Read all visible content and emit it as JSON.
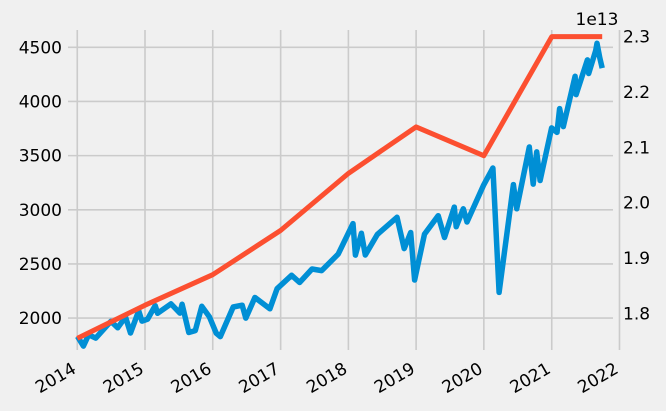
{
  "chart_data": {
    "type": "line",
    "style": "fivethirtyeight",
    "grid": true,
    "xlim": [
      "2013-11-12",
      "2021-11-27"
    ],
    "x_ticks": [
      "2014",
      "2015",
      "2016",
      "2017",
      "2018",
      "2019",
      "2020",
      "2021",
      "2022"
    ],
    "left_axis": {
      "ylim": [
        1705,
        4660
      ],
      "ticks": [
        2000,
        2500,
        3000,
        3500,
        4000,
        4500
      ],
      "tick_labels": [
        "2000",
        "2500",
        "3000",
        "3500",
        "4000",
        "4500"
      ]
    },
    "right_axis": {
      "offset_label": "1e13",
      "ylim": [
        1.734,
        2.312
      ],
      "ticks": [
        1.8,
        1.9,
        2.0,
        2.1,
        2.2,
        2.3
      ],
      "tick_labels": [
        "1.8",
        "1.9",
        "2.0",
        "2.1",
        "2.2",
        "2.3"
      ]
    },
    "series": [
      {
        "axis": "left",
        "color": "#008fd5",
        "values": [
          [
            "2014-01-02",
            1831
          ],
          [
            "2014-02-03",
            1741
          ],
          [
            "2014-03-03",
            1845
          ],
          [
            "2014-04-11",
            1815
          ],
          [
            "2014-05-15",
            1880
          ],
          [
            "2014-07-01",
            1970
          ],
          [
            "2014-08-07",
            1910
          ],
          [
            "2014-09-18",
            2010
          ],
          [
            "2014-10-15",
            1862
          ],
          [
            "2014-11-28",
            2067
          ],
          [
            "2014-12-16",
            1972
          ],
          [
            "2015-01-15",
            1990
          ],
          [
            "2015-02-25",
            2115
          ],
          [
            "2015-03-10",
            2044
          ],
          [
            "2015-05-21",
            2131
          ],
          [
            "2015-07-08",
            2046
          ],
          [
            "2015-07-20",
            2128
          ],
          [
            "2015-08-25",
            1867
          ],
          [
            "2015-09-29",
            1884
          ],
          [
            "2015-11-03",
            2109
          ],
          [
            "2015-12-14",
            2012
          ],
          [
            "2016-01-20",
            1859
          ],
          [
            "2016-02-11",
            1829
          ],
          [
            "2016-04-20",
            2102
          ],
          [
            "2016-06-08",
            2119
          ],
          [
            "2016-06-27",
            2000
          ],
          [
            "2016-08-15",
            2190
          ],
          [
            "2016-11-04",
            2085
          ],
          [
            "2016-12-13",
            2271
          ],
          [
            "2017-03-01",
            2395
          ],
          [
            "2017-04-13",
            2328
          ],
          [
            "2017-06-19",
            2453
          ],
          [
            "2017-08-10",
            2438
          ],
          [
            "2017-11-07",
            2591
          ],
          [
            "2018-01-26",
            2872
          ],
          [
            "2018-02-08",
            2581
          ],
          [
            "2018-03-12",
            2783
          ],
          [
            "2018-04-02",
            2582
          ],
          [
            "2018-06-06",
            2772
          ],
          [
            "2018-09-20",
            2930
          ],
          [
            "2018-10-29",
            2641
          ],
          [
            "2018-12-03",
            2790
          ],
          [
            "2018-12-24",
            2351
          ],
          [
            "2019-02-15",
            2775
          ],
          [
            "2019-04-30",
            2945
          ],
          [
            "2019-06-03",
            2744
          ],
          [
            "2019-07-26",
            3025
          ],
          [
            "2019-08-05",
            2844
          ],
          [
            "2019-09-12",
            3009
          ],
          [
            "2019-10-02",
            2887
          ],
          [
            "2019-12-31",
            3230
          ],
          [
            "2020-02-19",
            3386
          ],
          [
            "2020-03-23",
            2237
          ],
          [
            "2020-06-08",
            3232
          ],
          [
            "2020-06-26",
            3009
          ],
          [
            "2020-09-02",
            3580
          ],
          [
            "2020-09-23",
            3237
          ],
          [
            "2020-10-12",
            3534
          ],
          [
            "2020-10-30",
            3270
          ],
          [
            "2020-12-31",
            3756
          ],
          [
            "2021-01-29",
            3714
          ],
          [
            "2021-02-12",
            3934
          ],
          [
            "2021-03-04",
            3768
          ],
          [
            "2021-05-07",
            4232
          ],
          [
            "2021-05-12",
            4063
          ],
          [
            "2021-07-12",
            4384
          ],
          [
            "2021-07-19",
            4258
          ],
          [
            "2021-08-26",
            4470
          ],
          [
            "2021-09-02",
            4537
          ],
          [
            "2021-09-17",
            4402
          ],
          [
            "2021-09-30",
            4308
          ]
        ]
      },
      {
        "axis": "right",
        "color": "#fc4f30",
        "values": [
          [
            "2014-01-01",
            1.755
          ],
          [
            "2015-01-01",
            1.815
          ],
          [
            "2016-01-01",
            1.87
          ],
          [
            "2017-01-01",
            1.95
          ],
          [
            "2018-01-01",
            2.053
          ],
          [
            "2019-01-01",
            2.137
          ],
          [
            "2020-01-01",
            2.085
          ],
          [
            "2021-01-01",
            2.3
          ],
          [
            "2021-09-30",
            2.3
          ]
        ]
      }
    ]
  }
}
